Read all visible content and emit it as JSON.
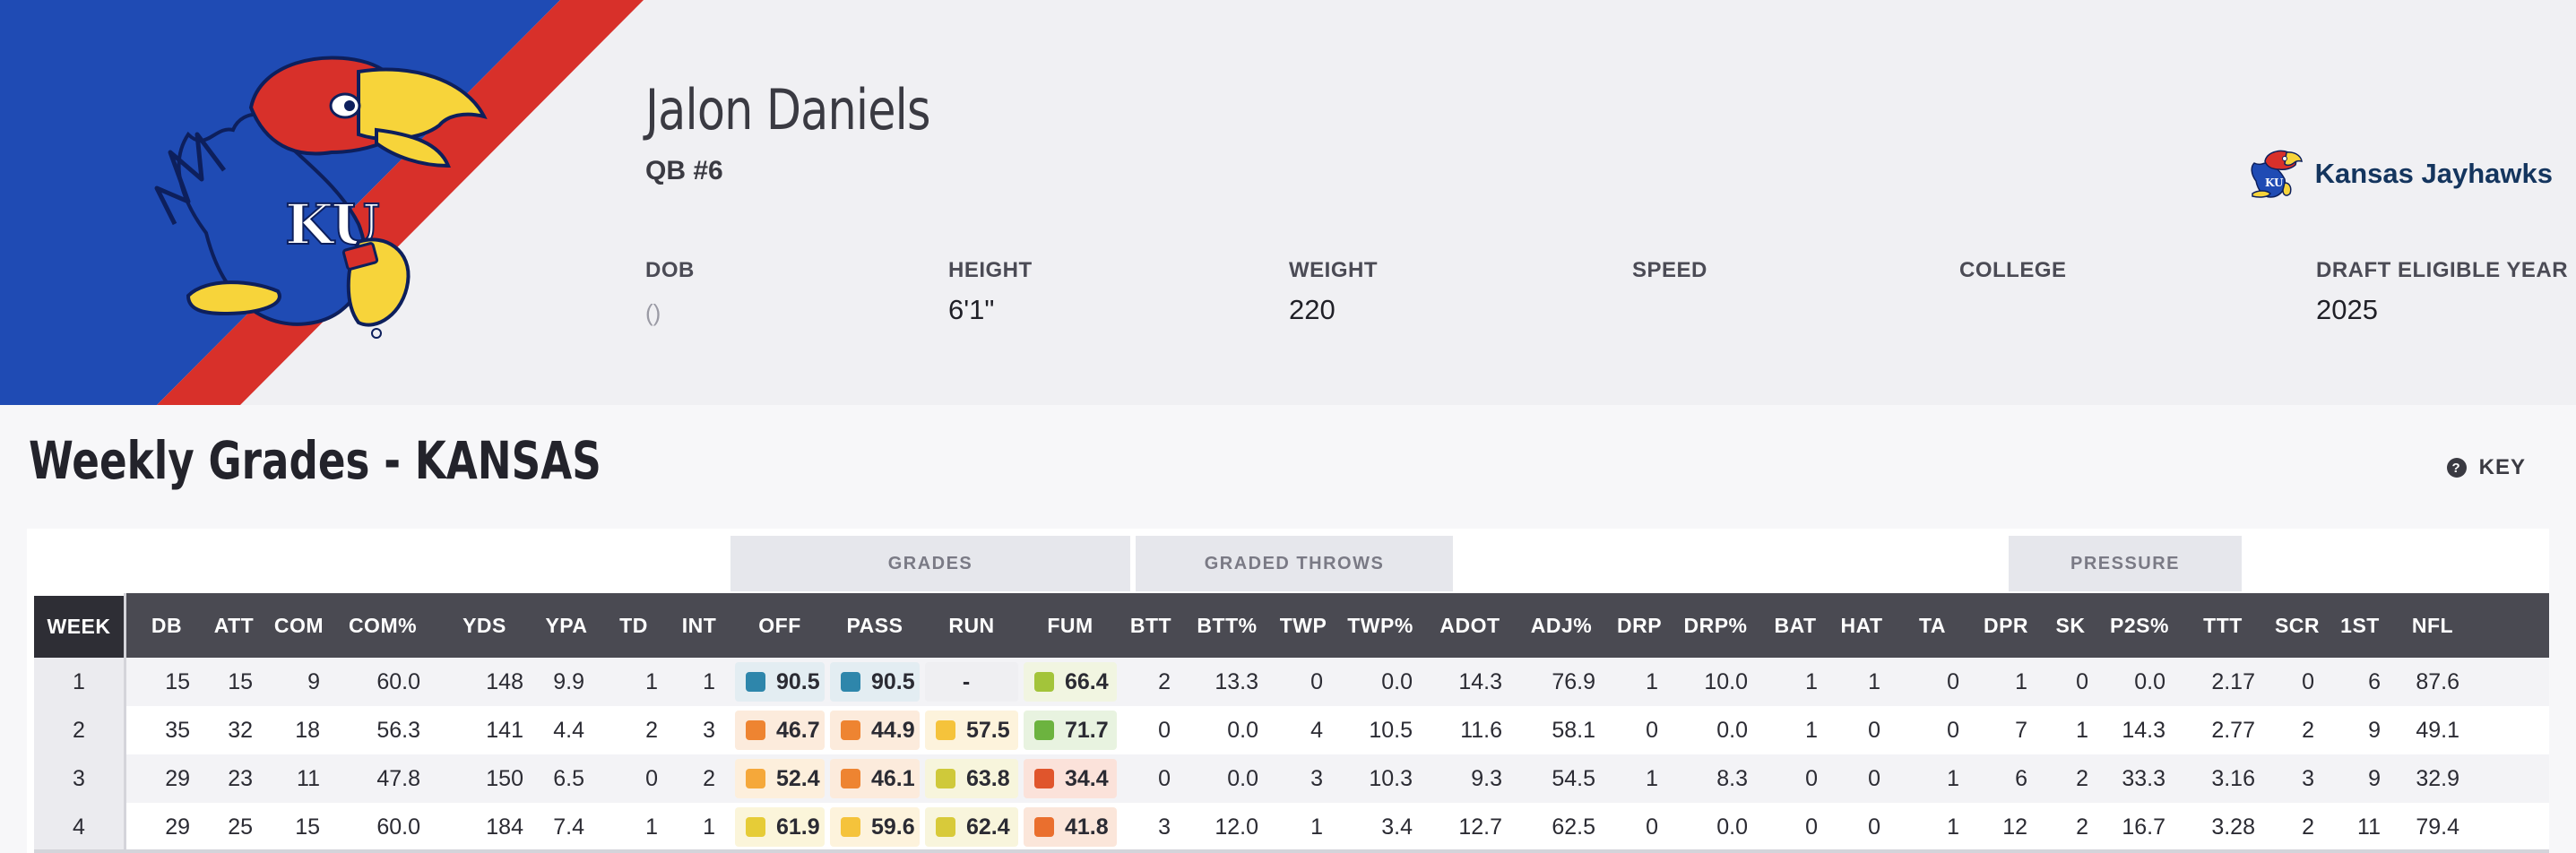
{
  "player": {
    "name": "Jalon Daniels",
    "position": "QB #6"
  },
  "info": [
    {
      "label": "DOB",
      "value": "()"
    },
    {
      "label": "HEIGHT",
      "value": "6'1\""
    },
    {
      "label": "WEIGHT",
      "value": "220"
    },
    {
      "label": "SPEED",
      "value": ""
    },
    {
      "label": "COLLEGE",
      "value": ""
    },
    {
      "label": "DRAFT ELIGIBLE YEAR",
      "value": "2025"
    }
  ],
  "team": {
    "name": "Kansas Jayhawks",
    "logo_icon": "jayhawk-logo-icon",
    "logo_text": "KU"
  },
  "colors": {
    "banner_blue": "#1f4bb4",
    "banner_red": "#d8302a",
    "header_bg": "#f0f0f3",
    "table_head": "#4a4a52",
    "week_head": "#2e2e35"
  },
  "section": {
    "title": "Weekly Grades - KANSAS",
    "key_label": "KEY",
    "key_icon": "help-circle-icon"
  },
  "groups": [
    {
      "label": "GRADES"
    },
    {
      "label": "GRADED THROWS"
    },
    {
      "label": "PRESSURE"
    }
  ],
  "columns": [
    "WEEK",
    "DB",
    "ATT",
    "COM",
    "COM%",
    "YDS",
    "YPA",
    "TD",
    "INT",
    "OFF",
    "PASS",
    "RUN",
    "FUM",
    "BTT",
    "BTT%",
    "TWP",
    "TWP%",
    "ADOT",
    "ADJ%",
    "DRP",
    "DRP%",
    "BAT",
    "HAT",
    "TA",
    "DPR",
    "SK",
    "P2S%",
    "TTT",
    "SCR",
    "1ST",
    "NFL"
  ],
  "rows": [
    {
      "week": "1",
      "pre": [
        "15",
        "15",
        "9",
        "60.0",
        "148",
        "9.9",
        "1",
        "1"
      ],
      "grades": [
        {
          "value": "90.5",
          "color": "#2e86ab",
          "bg": "#e3edf2"
        },
        {
          "value": "90.5",
          "color": "#2e86ab",
          "bg": "#e3edf2"
        },
        {
          "value": "-",
          "color": "",
          "bg": "#efeff2"
        },
        {
          "value": "66.4",
          "color": "#a3c43a",
          "bg": "#f1f5e1"
        }
      ],
      "post": [
        "2",
        "13.3",
        "0",
        "0.0",
        "14.3",
        "76.9",
        "1",
        "10.0",
        "1",
        "1",
        "0",
        "1",
        "0",
        "0.0",
        "2.17",
        "0",
        "6",
        "87.6"
      ]
    },
    {
      "week": "2",
      "pre": [
        "35",
        "32",
        "18",
        "56.3",
        "141",
        "4.4",
        "2",
        "3"
      ],
      "grades": [
        {
          "value": "46.7",
          "color": "#ee8431",
          "bg": "#fcebdc"
        },
        {
          "value": "44.9",
          "color": "#ee8431",
          "bg": "#fcebdc"
        },
        {
          "value": "57.5",
          "color": "#f5c33b",
          "bg": "#fdf3dc"
        },
        {
          "value": "71.7",
          "color": "#6cb33f",
          "bg": "#e8f3e0"
        }
      ],
      "post": [
        "0",
        "0.0",
        "4",
        "10.5",
        "11.6",
        "58.1",
        "0",
        "0.0",
        "1",
        "0",
        "0",
        "7",
        "1",
        "14.3",
        "2.77",
        "2",
        "9",
        "49.1"
      ]
    },
    {
      "week": "3",
      "pre": [
        "29",
        "23",
        "11",
        "47.8",
        "150",
        "6.5",
        "0",
        "2"
      ],
      "grades": [
        {
          "value": "52.4",
          "color": "#f5a83a",
          "bg": "#fdefdc"
        },
        {
          "value": "46.1",
          "color": "#ee8431",
          "bg": "#fcebdc"
        },
        {
          "value": "63.8",
          "color": "#cfc93a",
          "bg": "#f7f5dc"
        },
        {
          "value": "34.4",
          "color": "#e0552c",
          "bg": "#fbe2da"
        }
      ],
      "post": [
        "0",
        "0.0",
        "3",
        "10.3",
        "9.3",
        "54.5",
        "1",
        "8.3",
        "0",
        "0",
        "1",
        "6",
        "2",
        "33.3",
        "3.16",
        "3",
        "9",
        "32.9"
      ]
    },
    {
      "week": "4",
      "pre": [
        "29",
        "25",
        "15",
        "60.0",
        "184",
        "7.4",
        "1",
        "1"
      ],
      "grades": [
        {
          "value": "61.9",
          "color": "#e6cc37",
          "bg": "#fbf5da"
        },
        {
          "value": "59.6",
          "color": "#f5c33b",
          "bg": "#fdf3dc"
        },
        {
          "value": "62.4",
          "color": "#d8ca3a",
          "bg": "#f8f5dc"
        },
        {
          "value": "41.8",
          "color": "#ea6f2e",
          "bg": "#fbe6da"
        }
      ],
      "post": [
        "3",
        "12.0",
        "1",
        "3.4",
        "12.7",
        "62.5",
        "0",
        "0.0",
        "0",
        "0",
        "1",
        "12",
        "2",
        "16.7",
        "3.28",
        "2",
        "11",
        "79.4"
      ]
    }
  ]
}
